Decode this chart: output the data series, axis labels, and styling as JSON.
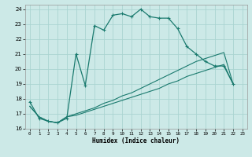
{
  "xlabel": "Humidex (Indice chaleur)",
  "background_color": "#cce9e7",
  "grid_color": "#aad4d1",
  "line_color": "#1a7a6e",
  "xlim": [
    -0.5,
    23.5
  ],
  "ylim": [
    16,
    24.3
  ],
  "yticks": [
    16,
    17,
    18,
    19,
    20,
    21,
    22,
    23,
    24
  ],
  "xticks": [
    0,
    1,
    2,
    3,
    4,
    5,
    6,
    7,
    8,
    9,
    10,
    11,
    12,
    13,
    14,
    15,
    16,
    17,
    18,
    19,
    20,
    21,
    22,
    23
  ],
  "line1_x": [
    0,
    1,
    2,
    3,
    4,
    5,
    6,
    7,
    8,
    9,
    10,
    11,
    12,
    13,
    14,
    15,
    16,
    17,
    18,
    19,
    20,
    21,
    22
  ],
  "line1_y": [
    17.8,
    16.7,
    16.5,
    16.4,
    16.7,
    21.0,
    18.9,
    22.9,
    22.6,
    23.6,
    23.7,
    23.5,
    24.0,
    23.5,
    23.4,
    23.4,
    22.7,
    21.5,
    21.0,
    20.5,
    20.2,
    20.2,
    19.0
  ],
  "line2_x": [
    0,
    1,
    2,
    3,
    4,
    5,
    6,
    7,
    8,
    9,
    10,
    11,
    12,
    13,
    14,
    15,
    16,
    17,
    18,
    19,
    20,
    21,
    22
  ],
  "line2_y": [
    17.5,
    16.8,
    16.5,
    16.4,
    16.8,
    16.9,
    17.1,
    17.3,
    17.5,
    17.7,
    17.9,
    18.1,
    18.3,
    18.5,
    18.7,
    19.0,
    19.2,
    19.5,
    19.7,
    19.9,
    20.1,
    20.3,
    19.0
  ],
  "line3_x": [
    0,
    1,
    2,
    3,
    4,
    5,
    6,
    7,
    8,
    9,
    10,
    11,
    12,
    13,
    14,
    15,
    16,
    17,
    18,
    19,
    20,
    21,
    22
  ],
  "line3_y": [
    17.5,
    16.8,
    16.5,
    16.4,
    16.8,
    17.0,
    17.2,
    17.4,
    17.7,
    17.9,
    18.2,
    18.4,
    18.7,
    19.0,
    19.3,
    19.6,
    19.9,
    20.2,
    20.5,
    20.7,
    20.9,
    21.1,
    19.0
  ]
}
